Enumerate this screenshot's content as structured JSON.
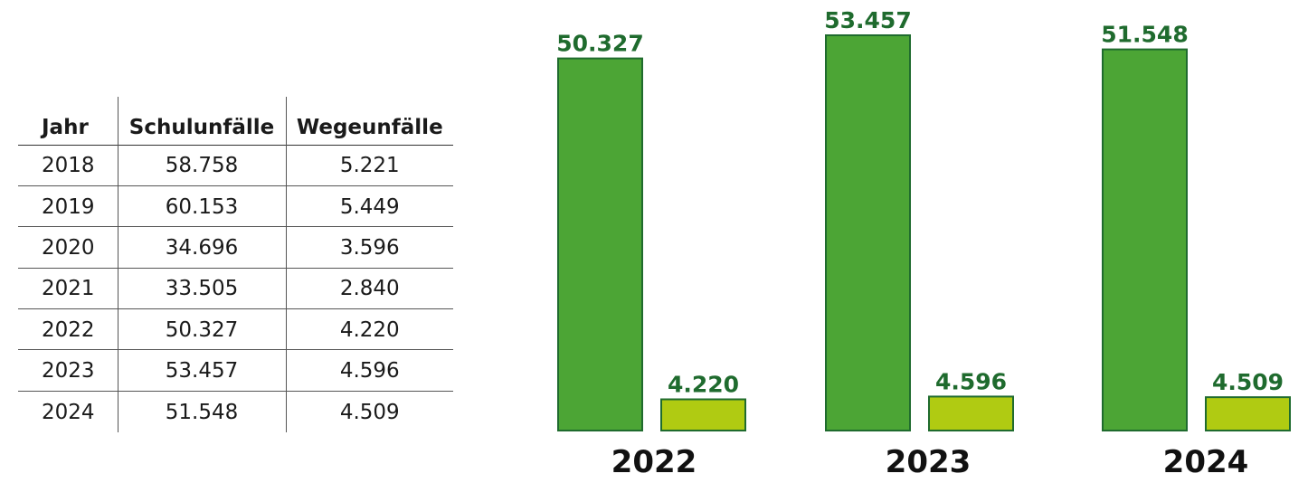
{
  "table": {
    "headers": [
      "Jahr",
      "Schulunfälle",
      "Wegeunfälle"
    ],
    "rows": [
      [
        "2018",
        "58.758",
        "5.221"
      ],
      [
        "2019",
        "60.153",
        "5.449"
      ],
      [
        "2020",
        "34.696",
        "3.596"
      ],
      [
        "2021",
        "33.505",
        "2.840"
      ],
      [
        "2022",
        "50.327",
        "4.220"
      ],
      [
        "2023",
        "53.457",
        "4.596"
      ],
      [
        "2024",
        "51.548",
        "4.509"
      ]
    ]
  },
  "chart_data": {
    "type": "bar",
    "categories": [
      "2022",
      "2023",
      "2024"
    ],
    "series": [
      {
        "values": [
          50327,
          53457,
          51548
        ],
        "labels": [
          "50.327",
          "53.457",
          "51.548"
        ],
        "color": "#4ca535"
      },
      {
        "values": [
          4220,
          4596,
          4509
        ],
        "labels": [
          "4.220",
          "4.596",
          "4.509"
        ],
        "color": "#b0cb12"
      }
    ],
    "ylim": [
      0,
      53457
    ],
    "grid": false,
    "legend": "none",
    "colors": {
      "bar_stroke": "#1f6b2e",
      "label_text": "#1f6b2e"
    }
  }
}
